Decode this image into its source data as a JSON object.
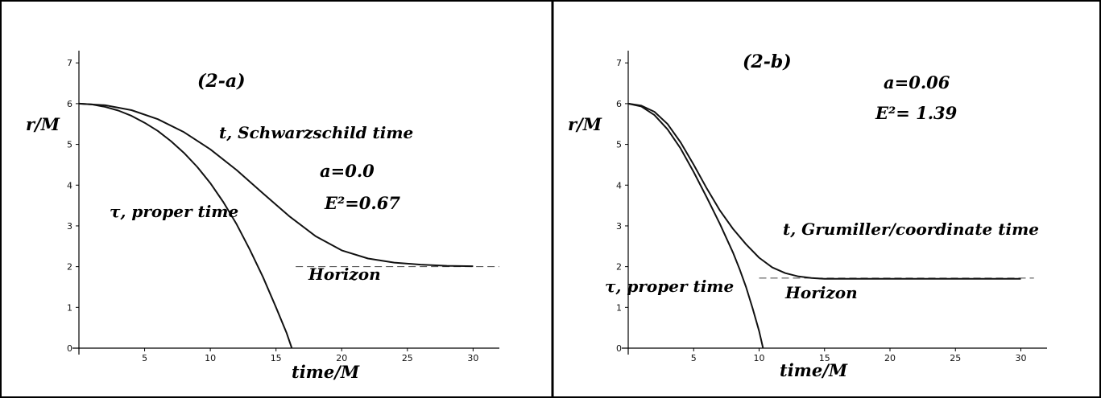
{
  "chart_data": [
    {
      "type": "line",
      "panel_label": "(2-a)",
      "xlabel": "time/M",
      "ylabel": "r/M",
      "xlim": [
        0,
        32
      ],
      "ylim": [
        0,
        7.3
      ],
      "x_ticks": [
        0,
        5,
        10,
        15,
        20,
        25,
        30
      ],
      "y_ticks": [
        0,
        1,
        2,
        3,
        4,
        5,
        6,
        7
      ],
      "params": [
        "a=0.0",
        "E²=0.67"
      ],
      "series": [
        {
          "name": "τ, proper time",
          "x": [
            0,
            1,
            2,
            3,
            4,
            5,
            6,
            7,
            8,
            9,
            10,
            11,
            12,
            13,
            14,
            15,
            15.8,
            16.2
          ],
          "y": [
            6.0,
            5.98,
            5.92,
            5.83,
            5.7,
            5.53,
            5.33,
            5.08,
            4.79,
            4.45,
            4.05,
            3.58,
            3.04,
            2.42,
            1.75,
            1.0,
            0.38,
            0.0
          ]
        },
        {
          "name": "t, Schwarzschild time",
          "x": [
            0,
            2,
            4,
            6,
            8,
            10,
            12,
            14,
            16,
            18,
            20,
            22,
            24,
            26,
            28,
            30
          ],
          "y": [
            6.0,
            5.96,
            5.84,
            5.62,
            5.3,
            4.88,
            4.37,
            3.8,
            3.24,
            2.75,
            2.4,
            2.2,
            2.1,
            2.05,
            2.02,
            2.01
          ]
        }
      ],
      "horizon": {
        "label": "Horizon",
        "r": 2.0,
        "x_range": [
          16.5,
          32
        ]
      }
    },
    {
      "type": "line",
      "panel_label": "(2-b)",
      "xlabel": "time/M",
      "ylabel": "r/M",
      "xlim": [
        0,
        32
      ],
      "ylim": [
        0,
        7.3
      ],
      "x_ticks": [
        0,
        5,
        10,
        15,
        20,
        25,
        30
      ],
      "y_ticks": [
        0,
        1,
        2,
        3,
        4,
        5,
        6,
        7
      ],
      "params": [
        "a=0.06",
        "E²= 1.39"
      ],
      "series": [
        {
          "name": "τ, proper time",
          "x": [
            0,
            1,
            2,
            3,
            4,
            5,
            6,
            7,
            8,
            8.5,
            9,
            9.5,
            10,
            10.3
          ],
          "y": [
            6.0,
            5.93,
            5.72,
            5.37,
            4.9,
            4.32,
            3.7,
            3.05,
            2.35,
            1.95,
            1.5,
            0.98,
            0.42,
            0.0
          ]
        },
        {
          "name": "t, Grumiller/coordinate time",
          "x": [
            0,
            1,
            2,
            3,
            4,
            5,
            6,
            7,
            8,
            9,
            10,
            11,
            12,
            13,
            14,
            15,
            17,
            20,
            25,
            30
          ],
          "y": [
            6.0,
            5.95,
            5.8,
            5.5,
            5.05,
            4.5,
            3.92,
            3.38,
            2.93,
            2.55,
            2.22,
            1.98,
            1.84,
            1.76,
            1.72,
            1.7,
            1.7,
            1.7,
            1.7,
            1.7
          ]
        }
      ],
      "horizon": {
        "label": "Horizon",
        "r": 1.72,
        "x_range": [
          10,
          31
        ]
      }
    }
  ]
}
